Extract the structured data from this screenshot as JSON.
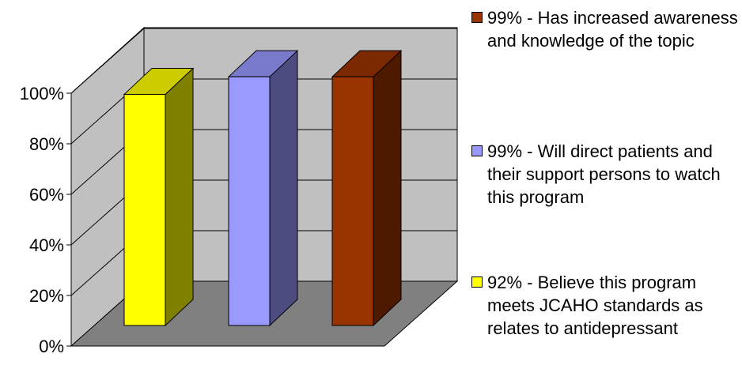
{
  "chart_data": {
    "type": "bar",
    "categories": [
      "",
      "",
      ""
    ],
    "values": [
      92,
      99,
      99
    ],
    "ylim": [
      0,
      100
    ],
    "y_tick_labels": [
      "0%",
      "20%",
      "40%",
      "60%",
      "80%",
      "100%"
    ],
    "title": "",
    "xlabel": "",
    "ylabel": "",
    "grid": true,
    "legend_placement": "right",
    "colors": {
      "bar_front": [
        "#ffff00",
        "#9999ff",
        "#993300"
      ],
      "bar_side": [
        "#808000",
        "#4c4c80",
        "#4d1a00"
      ],
      "bar_top": [
        "#cccc00",
        "#7a7acc",
        "#7a2900"
      ],
      "back_wall": "#c0c0c0",
      "floor": "#808080",
      "gridline": "#000000"
    },
    "legend": [
      {
        "text": "99% - Has increased awareness  and knowledge of the topic",
        "color": "#993300"
      },
      {
        "text": "99% - Will direct patients and their support persons to watch this program",
        "color": "#9999ff"
      },
      {
        "text": "92% - Believe this program meets JCAHO standards as relates to antidepressant",
        "color": "#ffff00"
      }
    ]
  }
}
